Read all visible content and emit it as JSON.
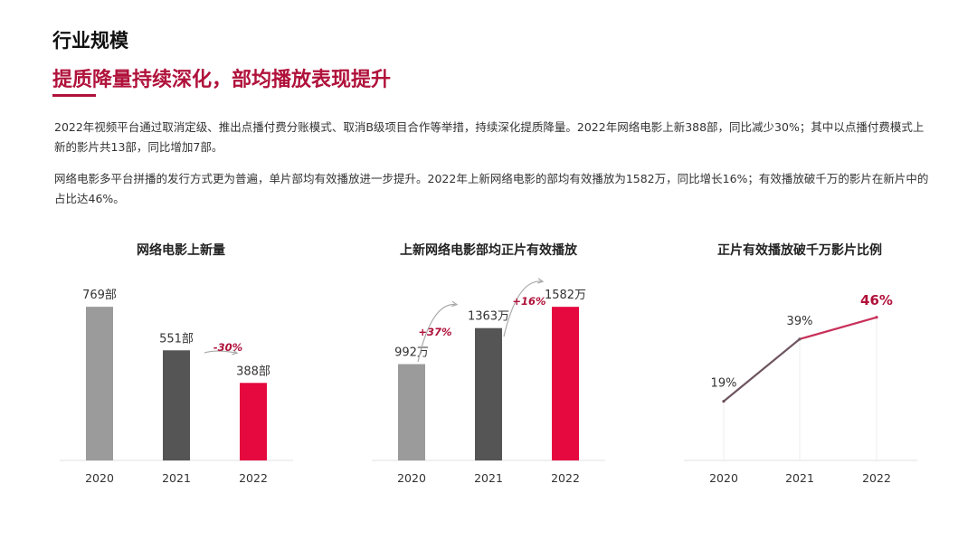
{
  "header": {
    "topic": "行业规模",
    "headline": "提质降量持续深化，部均播放表现提升"
  },
  "paragraphs": [
    "2022年视频平台通过取消定级、推出点播付费分账模式、取消B级项目合作等举措，持续深化提质降量。2022年网络电影上新388部，同比减少30%；其中以点播付费模式上新的影片共13部，同比增加7部。",
    "网络电影多平台拼播的发行方式更为普遍，单片部均有效播放进一步提升。2022年上新网络电影的部均有效播放为1582万，同比增长16%；有效播放破千万的影片在新片中的占比达46%。"
  ],
  "colors": {
    "accent": "#b0123b",
    "bar_2020": "#9b9b9b",
    "bar_2021": "#555555",
    "bar_2022": "#e5093f",
    "line_2021": "#6e5560",
    "line_2022": "#c8305a"
  },
  "chart_data": [
    {
      "type": "bar",
      "title": "网络电影上新量",
      "categories": [
        "2020",
        "2021",
        "2022"
      ],
      "values": [
        769,
        551,
        388
      ],
      "value_labels": [
        "769部",
        "551部",
        "388部"
      ],
      "annotations": [
        "-30%"
      ],
      "ylim": [
        0,
        860
      ]
    },
    {
      "type": "bar",
      "title": "上新网络电影部均正片有效播放",
      "categories": [
        "2020",
        "2021",
        "2022"
      ],
      "values": [
        992,
        1363,
        1582
      ],
      "value_labels": [
        "992万",
        "1363万",
        "1582万"
      ],
      "annotations": [
        "+37%",
        "+16%"
      ],
      "ylim": [
        0,
        1770
      ]
    },
    {
      "type": "line",
      "title": "正片有效播放破千万影片比例",
      "categories": [
        "2020",
        "2021",
        "2022"
      ],
      "values": [
        19,
        39,
        46
      ],
      "value_labels": [
        "19%",
        "39%",
        "46%"
      ],
      "ylim": [
        0,
        50
      ]
    }
  ]
}
